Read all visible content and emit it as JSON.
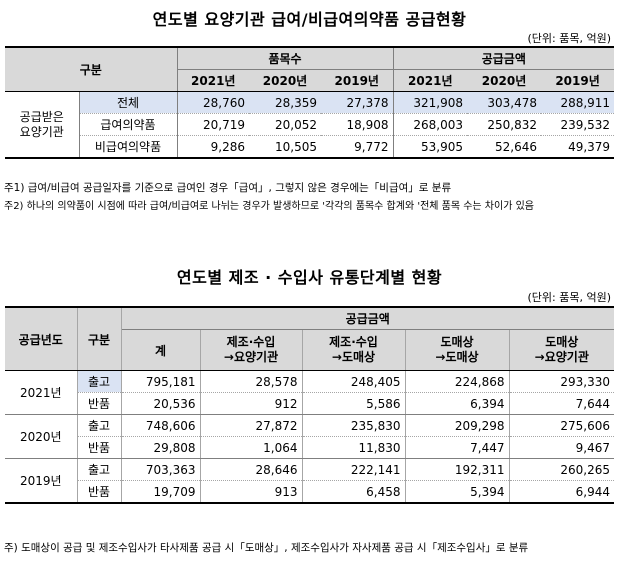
{
  "table1": {
    "title": "연도별 요양기관 급여/비급여의약품 공급현황",
    "unit": "(단위: 품목, 억원)",
    "col_category": "구분",
    "group_count": "품목수",
    "group_amount": "공급금액",
    "years": [
      "2021년",
      "2020년",
      "2019년"
    ],
    "row_group_label_line1": "공급받은",
    "row_group_label_line2": "요양기관",
    "rows": [
      {
        "label": "전체",
        "values": [
          "28,760",
          "28,359",
          "27,378",
          "321,908",
          "303,478",
          "288,911"
        ]
      },
      {
        "label": "급여의약품",
        "values": [
          "20,719",
          "20,052",
          "18,908",
          "268,003",
          "250,832",
          "239,532"
        ]
      },
      {
        "label": "비급여의약품",
        "values": [
          "9,286",
          "10,505",
          "9,772",
          "53,905",
          "52,646",
          "49,379"
        ]
      }
    ],
    "notes": [
      "주1) 급여/비급여 공급일자를 기준으로 급여인 경우「급여」, 그렇지 않은 경우에는「비급여」로 분류",
      "주2) 하나의 의약품이 시점에 따라 급여/비급여로 나뉘는 경우가 발생하므로 '각각의 품목수 합계와 '전체 품목 수는 차이가 있음"
    ]
  },
  "table2": {
    "title": "연도별 제조 · 수입사 유통단계별 현황",
    "unit": "(단위: 품목, 억원)",
    "col_year": "공급년도",
    "col_category": "구분",
    "group_amount": "공급금액",
    "col_total": "계",
    "cols": [
      {
        "line1": "제조·수입",
        "line2": "→요양기관"
      },
      {
        "line1": "제조·수입",
        "line2": "→도매상"
      },
      {
        "line1": "도매상",
        "line2": "→도매상"
      },
      {
        "line1": "도매상",
        "line2": "→요양기관"
      }
    ],
    "years": [
      {
        "year": "2021년",
        "rows": [
          {
            "label": "출고",
            "values": [
              "795,181",
              "28,578",
              "248,405",
              "224,868",
              "293,330"
            ]
          },
          {
            "label": "반품",
            "values": [
              "20,536",
              "912",
              "5,586",
              "6,394",
              "7,644"
            ]
          }
        ]
      },
      {
        "year": "2020년",
        "rows": [
          {
            "label": "출고",
            "values": [
              "748,606",
              "27,872",
              "235,830",
              "209,298",
              "275,606"
            ]
          },
          {
            "label": "반품",
            "values": [
              "29,808",
              "1,064",
              "11,830",
              "7,447",
              "9,467"
            ]
          }
        ]
      },
      {
        "year": "2019년",
        "rows": [
          {
            "label": "출고",
            "values": [
              "703,363",
              "28,646",
              "222,141",
              "192,311",
              "260,265"
            ]
          },
          {
            "label": "반품",
            "values": [
              "19,709",
              "913",
              "6,458",
              "5,394",
              "6,944"
            ]
          }
        ]
      }
    ],
    "note": "주) 도매상이 공급 및 제조수입사가 타사제품 공급 시「도매상」, 제조수입사가 자사제품 공급 시「제조수입사」로 분류"
  }
}
